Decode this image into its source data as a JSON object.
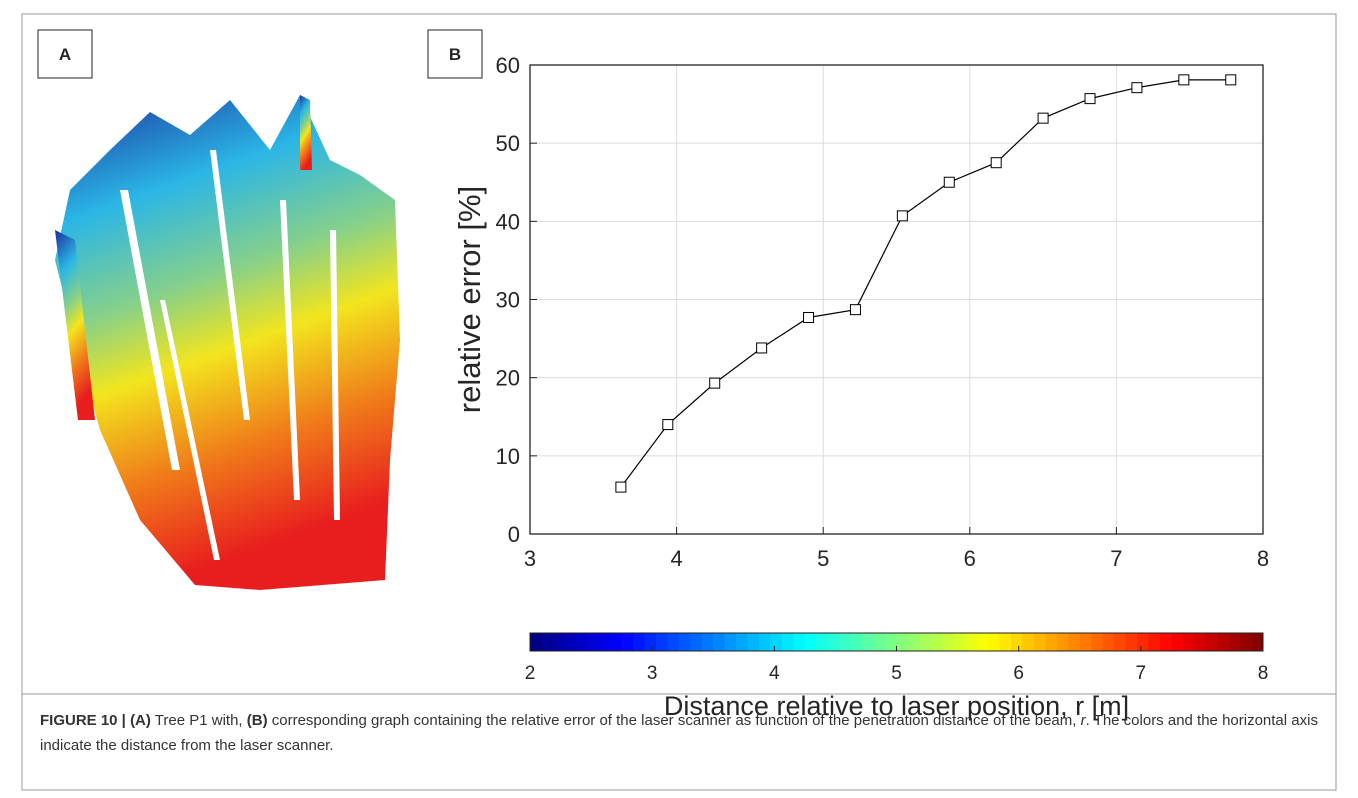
{
  "panels": {
    "a_label": "A",
    "b_label": "B"
  },
  "chart_data": {
    "type": "line",
    "ylabel": "relative error [%]",
    "x": [
      3.62,
      3.94,
      4.26,
      4.58,
      4.9,
      5.22,
      5.54,
      5.86,
      6.18,
      6.5,
      6.82,
      7.14,
      7.46,
      7.78
    ],
    "values": [
      6,
      14,
      19.3,
      23.8,
      27.7,
      28.7,
      40.7,
      45,
      47.5,
      53.2,
      55.7,
      57.1,
      58.1,
      58.1
    ],
    "color": "#000000",
    "marker": "square",
    "xlim": [
      3,
      8
    ],
    "xticks": [
      3,
      4,
      5,
      6,
      7,
      8
    ],
    "ylim": [
      0,
      60
    ],
    "yticks": [
      0,
      10,
      20,
      30,
      40,
      50,
      60
    ],
    "grid": true,
    "colorbar": {
      "label": "Distance relative to laser position, r [m]",
      "lim": [
        2,
        8
      ],
      "ticks": [
        2,
        3,
        4,
        5,
        6,
        7,
        8
      ],
      "colormap": "jet"
    }
  },
  "caption": {
    "segments": [
      "FIGURE 10 | ",
      "(A)",
      " Tree P1 with, ",
      "(B)",
      " corresponding graph containing the relative error of the laser scanner as function of the penetration distance of the beam, ",
      "r",
      ". The colors and the horizontal axis indicate the distance from the laser scanner."
    ]
  }
}
